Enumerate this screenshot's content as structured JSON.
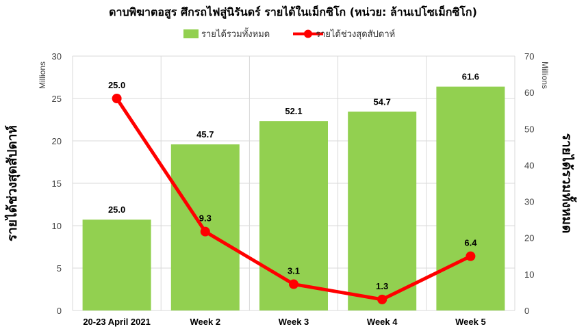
{
  "chart_data": {
    "type": "bar",
    "title": "ดาบพิฆาตอสูร ศึกรถไฟสู่นิรันดร์ รายได้ในเม็กซิโก (หน่วย: ล้านเปโซเม็กซิโก)",
    "categories": [
      "20-23 April 2021",
      "Week 2",
      "Week 3",
      "Week 4",
      "Week 5"
    ],
    "series": [
      {
        "name": "รายได้รวมทั้งหมด",
        "kind": "bar",
        "axis": "right",
        "values": [
          25.0,
          45.7,
          52.1,
          54.7,
          61.6
        ],
        "labels": [
          "25.0",
          "45.7",
          "52.1",
          "54.7",
          "61.6"
        ],
        "color": "#92d050"
      },
      {
        "name": "รายได้ช่วงสุดสัปดาห์",
        "kind": "line",
        "axis": "left",
        "values": [
          25.0,
          9.3,
          3.1,
          1.3,
          6.4
        ],
        "labels": [
          "25.0",
          "9.3",
          "3.1",
          "1.3",
          "6.4"
        ],
        "color": "#ff0000"
      }
    ],
    "y_left": {
      "label": "รายได้ช่วงสุดสัปดาห์",
      "units": "Millions",
      "ylim": [
        0,
        30
      ],
      "ticks": [
        "0",
        "5",
        "10",
        "15",
        "20",
        "25",
        "30"
      ]
    },
    "y_right": {
      "label": "รายได้รวมทั้งหมด",
      "units": "Millions",
      "ylim": [
        0,
        70
      ],
      "ticks": [
        "0",
        "10",
        "20",
        "30",
        "40",
        "50",
        "60",
        "70"
      ]
    },
    "grid": true,
    "legend_position": "top"
  }
}
